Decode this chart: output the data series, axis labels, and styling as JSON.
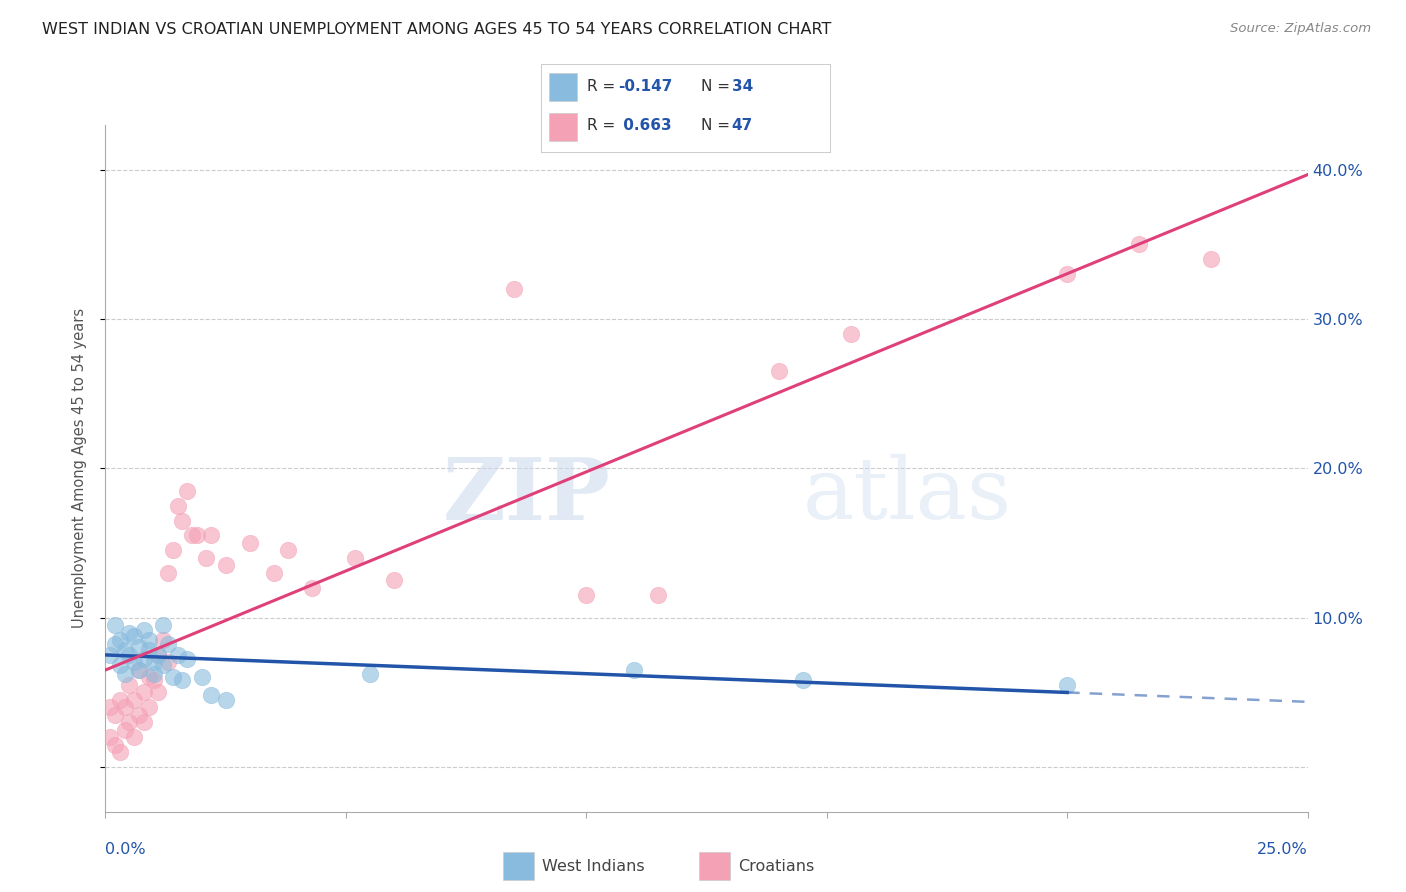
{
  "title": "WEST INDIAN VS CROATIAN UNEMPLOYMENT AMONG AGES 45 TO 54 YEARS CORRELATION CHART",
  "source": "Source: ZipAtlas.com",
  "ylabel": "Unemployment Among Ages 45 to 54 years",
  "ytick_values": [
    0.0,
    0.1,
    0.2,
    0.3,
    0.4
  ],
  "ytick_labels": [
    "",
    "10.0%",
    "20.0%",
    "30.0%",
    "40.0%"
  ],
  "xlim": [
    0.0,
    0.25
  ],
  "ylim": [
    -0.03,
    0.43
  ],
  "west_color": "#88bbdd",
  "croatian_color": "#f4a0b5",
  "west_line_color": "#2255aa",
  "croatian_line_color": "#e0407a",
  "watermark_zip": "ZIP",
  "watermark_atlas": "atlas",
  "west_r": "-0.147",
  "west_n": "34",
  "croatian_r": "0.663",
  "croatian_n": "47",
  "label_color": "#2255aa",
  "grid_color": "#cccccc",
  "west_points_x": [
    0.001,
    0.002,
    0.002,
    0.003,
    0.003,
    0.004,
    0.004,
    0.005,
    0.005,
    0.006,
    0.006,
    0.007,
    0.007,
    0.008,
    0.008,
    0.009,
    0.009,
    0.01,
    0.01,
    0.011,
    0.012,
    0.012,
    0.013,
    0.014,
    0.015,
    0.016,
    0.017,
    0.02,
    0.022,
    0.025,
    0.055,
    0.11,
    0.145,
    0.2
  ],
  "west_points_y": [
    0.075,
    0.082,
    0.095,
    0.068,
    0.085,
    0.078,
    0.062,
    0.09,
    0.075,
    0.088,
    0.07,
    0.08,
    0.065,
    0.092,
    0.072,
    0.085,
    0.078,
    0.07,
    0.062,
    0.075,
    0.095,
    0.068,
    0.082,
    0.06,
    0.075,
    0.058,
    0.072,
    0.06,
    0.048,
    0.045,
    0.062,
    0.065,
    0.058,
    0.055
  ],
  "croatian_points_x": [
    0.001,
    0.001,
    0.002,
    0.002,
    0.003,
    0.003,
    0.004,
    0.004,
    0.005,
    0.005,
    0.006,
    0.006,
    0.007,
    0.007,
    0.008,
    0.008,
    0.009,
    0.009,
    0.01,
    0.011,
    0.011,
    0.012,
    0.013,
    0.013,
    0.014,
    0.015,
    0.016,
    0.017,
    0.018,
    0.019,
    0.021,
    0.022,
    0.025,
    0.03,
    0.035,
    0.038,
    0.043,
    0.052,
    0.06,
    0.085,
    0.1,
    0.115,
    0.14,
    0.155,
    0.2,
    0.215,
    0.23
  ],
  "croatian_points_y": [
    0.04,
    0.02,
    0.035,
    0.015,
    0.045,
    0.01,
    0.025,
    0.04,
    0.03,
    0.055,
    0.02,
    0.045,
    0.035,
    0.065,
    0.05,
    0.03,
    0.06,
    0.04,
    0.058,
    0.075,
    0.05,
    0.085,
    0.13,
    0.07,
    0.145,
    0.175,
    0.165,
    0.185,
    0.155,
    0.155,
    0.14,
    0.155,
    0.135,
    0.15,
    0.13,
    0.145,
    0.12,
    0.14,
    0.125,
    0.32,
    0.115,
    0.115,
    0.265,
    0.29,
    0.33,
    0.35,
    0.34
  ]
}
